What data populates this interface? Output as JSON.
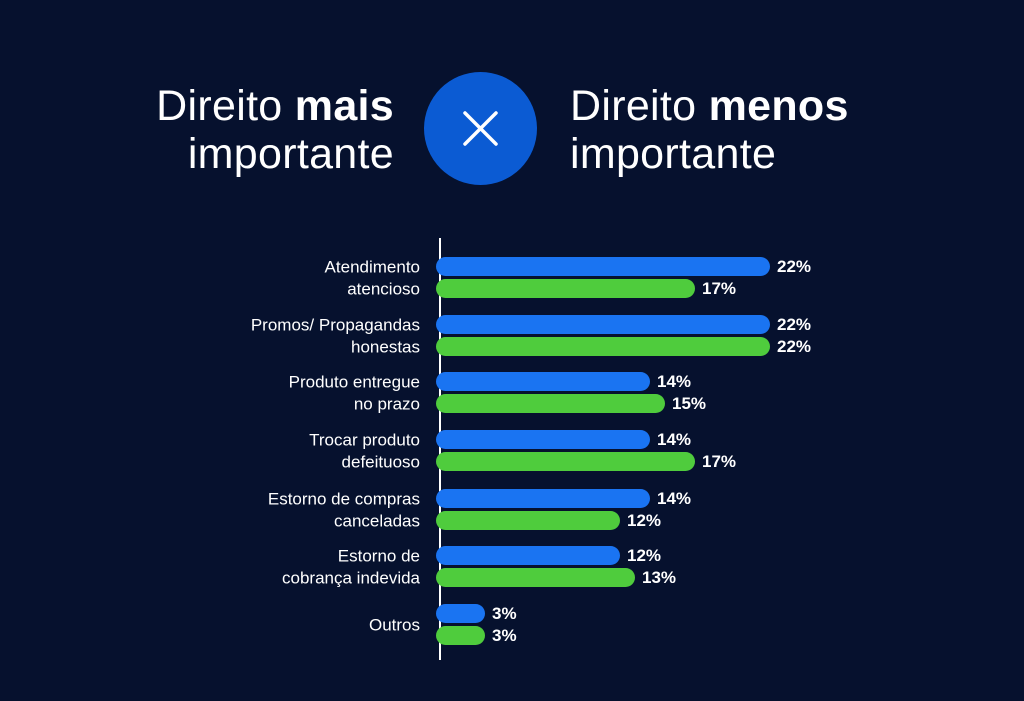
{
  "header": {
    "left": {
      "line1_regular": "Direito ",
      "line1_bold": "mais",
      "line2": "importante"
    },
    "right": {
      "line1_regular": "Direito ",
      "line1_bold": "menos",
      "line2": "importante"
    },
    "versus_icon": "close-x-icon"
  },
  "colors": {
    "background": "#06112e",
    "series_more": "#1a74f2",
    "series_less": "#4fcc3d",
    "circle": "#0b5bd3",
    "text": "#ffffff"
  },
  "chart_data": {
    "type": "bar",
    "orientation": "horizontal",
    "categories": [
      [
        "Atendimento",
        "atencioso"
      ],
      [
        "Promos/ Propagandas",
        "honestas"
      ],
      [
        "Produto entregue",
        "no prazo"
      ],
      [
        "Trocar produto",
        "defeituoso"
      ],
      [
        "Estorno de compras",
        "canceladas"
      ],
      [
        "Estorno de",
        "cobrança indevida"
      ],
      [
        "Outros"
      ]
    ],
    "series": [
      {
        "values": [
          22,
          22,
          14,
          14,
          14,
          12,
          3
        ],
        "labels": [
          "22%",
          "22%",
          "14%",
          "14%",
          "14%",
          "12%",
          "3%"
        ]
      },
      {
        "values": [
          17,
          22,
          15,
          17,
          12,
          13,
          3
        ],
        "labels": [
          "17%",
          "22%",
          "15%",
          "17%",
          "12%",
          "13%",
          "3%"
        ]
      }
    ],
    "unit": "%",
    "xlim": [
      0,
      22
    ],
    "grid": false,
    "legend": "none"
  }
}
